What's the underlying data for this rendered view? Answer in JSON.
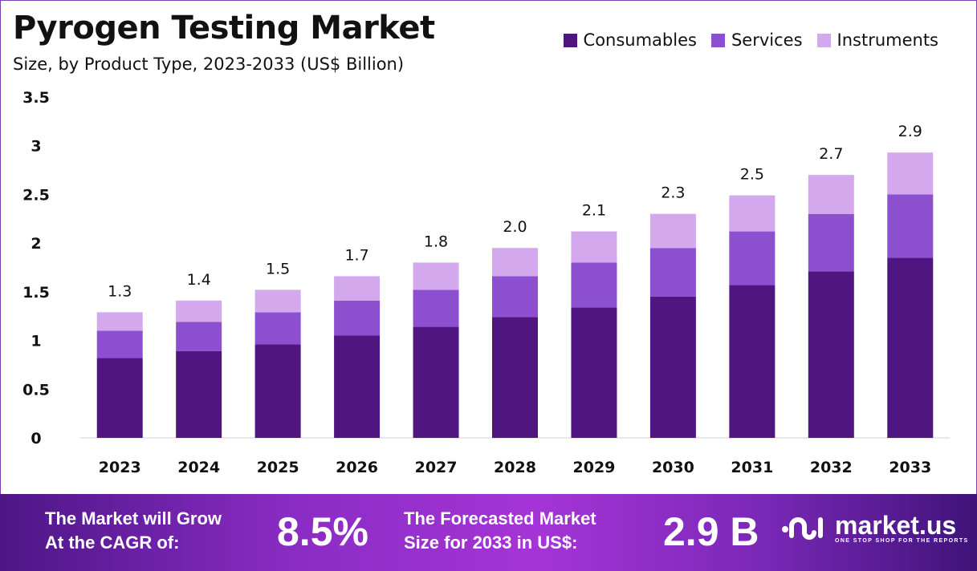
{
  "chart_data": {
    "type": "bar",
    "stacked": true,
    "title": "Pyrogen Testing Market",
    "subtitle": "Size, by Product Type, 2023-2033 (US$ Billion)",
    "categories": [
      "2023",
      "2024",
      "2025",
      "2026",
      "2027",
      "2028",
      "2029",
      "2030",
      "2031",
      "2032",
      "2033"
    ],
    "series": [
      {
        "name": "Consumables",
        "color": "#4f1580",
        "values": [
          0.82,
          0.89,
          0.96,
          1.05,
          1.14,
          1.24,
          1.34,
          1.45,
          1.57,
          1.71,
          1.85
        ]
      },
      {
        "name": "Services",
        "color": "#8b4fcf",
        "values": [
          0.28,
          0.3,
          0.33,
          0.36,
          0.38,
          0.42,
          0.46,
          0.5,
          0.55,
          0.59,
          0.65
        ]
      },
      {
        "name": "Instruments",
        "color": "#d3a8ec",
        "values": [
          0.19,
          0.22,
          0.23,
          0.25,
          0.28,
          0.29,
          0.32,
          0.35,
          0.37,
          0.4,
          0.43
        ]
      }
    ],
    "totals_labels": [
      "1.3",
      "1.4",
      "1.5",
      "1.7",
      "1.8",
      "2.0",
      "2.1",
      "2.3",
      "2.5",
      "2.7",
      "2.9"
    ],
    "yticks": [
      "0",
      "0.5",
      "1",
      "1.5",
      "2",
      "2.5",
      "3",
      "3.5"
    ],
    "ylim": [
      0,
      3.5
    ],
    "grid": false,
    "legend_position": "top-right"
  },
  "footer": {
    "cagr_label_1": "The Market will Grow",
    "cagr_label_2": "At the CAGR of:",
    "cagr_value": "8.5%",
    "forecast_label_1": "The Forecasted Market",
    "forecast_label_2": "Size for 2033 in US$:",
    "forecast_value": "2.9 B",
    "logo_text": "market.us",
    "logo_tagline": "ONE STOP SHOP FOR THE REPORTS"
  }
}
